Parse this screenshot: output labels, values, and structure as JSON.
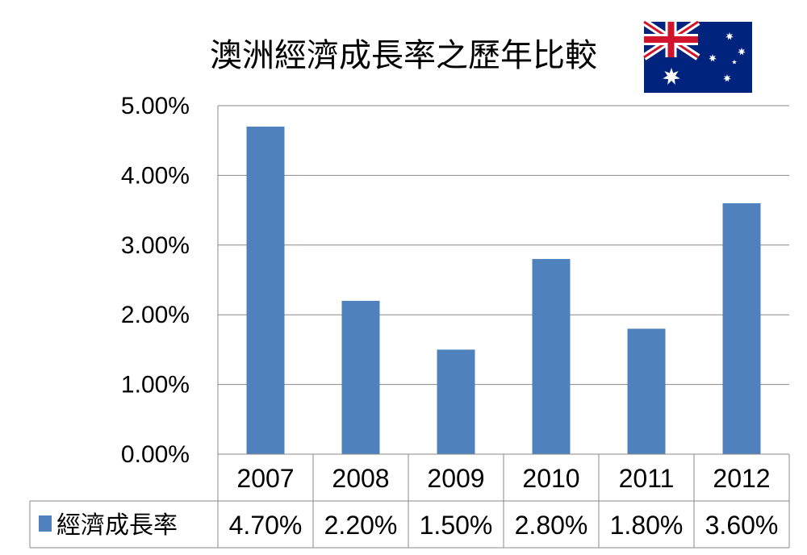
{
  "chart_data": {
    "type": "bar",
    "title": "澳洲經濟成長率之歷年比較",
    "categories": [
      "2007",
      "2008",
      "2009",
      "2010",
      "2011",
      "2012"
    ],
    "series": [
      {
        "name": "經濟成長率",
        "values": [
          4.7,
          2.2,
          1.5,
          2.8,
          1.8,
          3.6
        ],
        "labels": [
          "4.70%",
          "2.20%",
          "1.50%",
          "2.80%",
          "1.80%",
          "3.60%"
        ],
        "color": "#4f81bd"
      }
    ],
    "ylim": [
      0,
      5
    ],
    "yticks": [
      0,
      1,
      2,
      3,
      4,
      5
    ],
    "ytick_labels": [
      "0.00%",
      "1.00%",
      "2.00%",
      "3.00%",
      "4.00%",
      "5.00%"
    ],
    "grid": true,
    "legend": "data-table-left"
  },
  "flag": {
    "icon": "australian-flag-icon",
    "blue": "#00247d",
    "red": "#cf142b",
    "white": "#ffffff"
  },
  "colors": {
    "grid": "#898989",
    "bar": "#4f81bd"
  }
}
